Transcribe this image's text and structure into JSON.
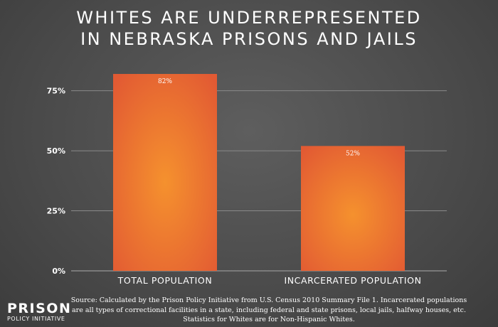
{
  "title_lines": [
    "WHITES ARE UNDERREPRESENTED",
    "IN NEBRASKA PRISONS AND JAILS"
  ],
  "logo": {
    "main": "PRISON",
    "sub": "POLICY INITIATIVE"
  },
  "source_lines": [
    "Source: Calculated by the Prison Policy Initiative from U.S. Census 2010 Summary File 1. Incarcerated populations",
    "are all types of correctional facilities in a state, including federal and state prisons, local jails, halfway houses, etc.",
    "Statistics for Whites are for Non-Hispanic Whites."
  ],
  "colors": {
    "bar_center": "#f5912e",
    "bar_edge": "#e25a33",
    "grid": "#8a8a8a",
    "text": "#ffffff"
  },
  "chart_data": {
    "type": "bar",
    "categories": [
      "TOTAL POPULATION",
      "INCARCERATED POPULATION"
    ],
    "values": [
      82,
      52
    ],
    "value_labels": [
      "82%",
      "52%"
    ],
    "ylim": [
      0,
      90
    ],
    "yticks": [
      0,
      25,
      50,
      75
    ],
    "ytick_labels": [
      "0%",
      "25%",
      "50%",
      "75%"
    ],
    "grid": true
  }
}
